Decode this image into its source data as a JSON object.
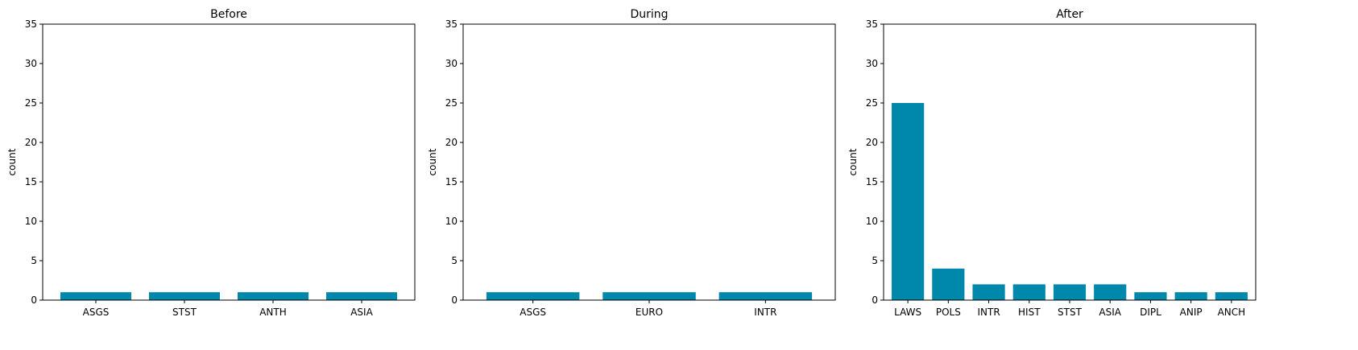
{
  "figure": {
    "bar_color": "#0088aa",
    "text_color": "#000000",
    "axis_color": "#000000"
  },
  "chart_data": [
    {
      "type": "bar",
      "title": "Before",
      "xlabel": "",
      "ylabel": "count",
      "ylim": [
        0,
        35
      ],
      "yticks": [
        0,
        5,
        10,
        15,
        20,
        25,
        30,
        35
      ],
      "categories": [
        "ASGS",
        "STST",
        "ANTH",
        "ASIA"
      ],
      "values": [
        1,
        1,
        1,
        1
      ],
      "grid": false
    },
    {
      "type": "bar",
      "title": "During",
      "xlabel": "",
      "ylabel": "count",
      "ylim": [
        0,
        35
      ],
      "yticks": [
        0,
        5,
        10,
        15,
        20,
        25,
        30,
        35
      ],
      "categories": [
        "ASGS",
        "EURO",
        "INTR"
      ],
      "values": [
        1,
        1,
        1
      ],
      "grid": false
    },
    {
      "type": "bar",
      "title": "After",
      "xlabel": "",
      "ylabel": "count",
      "ylim": [
        0,
        35
      ],
      "yticks": [
        0,
        5,
        10,
        15,
        20,
        25,
        30,
        35
      ],
      "categories": [
        "LAWS",
        "POLS",
        "INTR",
        "HIST",
        "STST",
        "ASIA",
        "DIPL",
        "ANIP",
        "ANCH"
      ],
      "values": [
        25,
        4,
        2,
        2,
        2,
        2,
        1,
        1,
        1
      ],
      "grid": false
    }
  ]
}
